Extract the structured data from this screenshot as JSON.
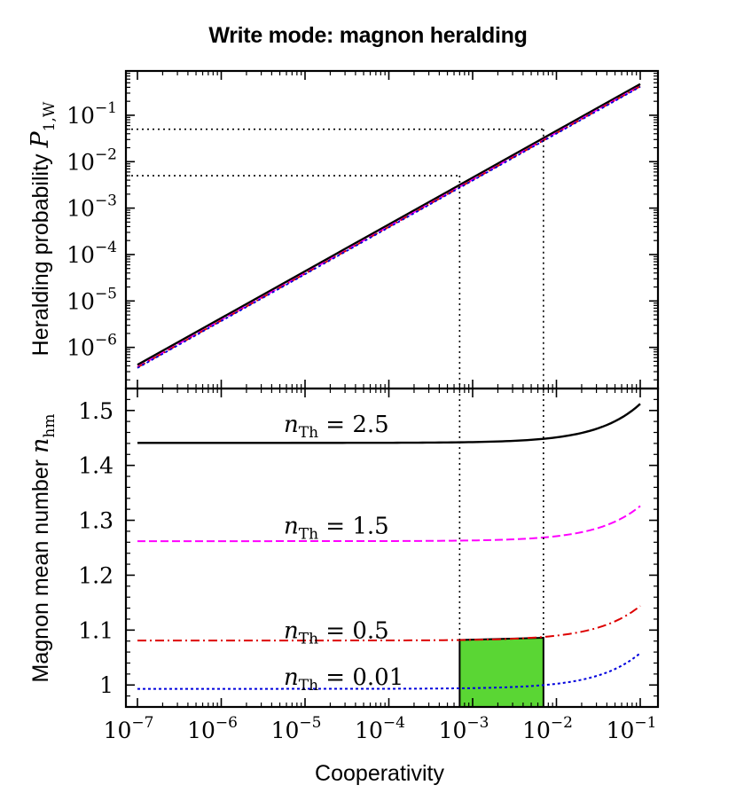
{
  "title": "Write mode: magnon heralding",
  "chart_data": [
    {
      "type": "line",
      "panel": "top",
      "ylabel_text": "Heralding probability",
      "ylabel_symbol": "P",
      "ylabel_sub": "1,W",
      "xscale": "log",
      "yscale": "log",
      "xlim": [
        1e-07,
        0.1
      ],
      "ylim": [
        1.3e-07,
        0.9
      ],
      "y_ticks": [
        {
          "value": 1e-06,
          "base": "10",
          "exp": "−6"
        },
        {
          "value": 1e-05,
          "base": "10",
          "exp": "−5"
        },
        {
          "value": 0.0001,
          "base": "10",
          "exp": "−4"
        },
        {
          "value": 0.001,
          "base": "10",
          "exp": "−3"
        },
        {
          "value": 0.01,
          "base": "10",
          "exp": "−2"
        },
        {
          "value": 0.1,
          "base": "10",
          "exp": "−1"
        }
      ],
      "series": [
        {
          "name": "n_Th = 2.5",
          "color": "#000000",
          "style": "solid",
          "x": [
            1e-07,
            0.1
          ],
          "y": [
            4.2e-07,
            0.47
          ]
        },
        {
          "name": "n_Th = 1.5",
          "color": "#ff00ff",
          "style": "dashed",
          "x": [
            1e-07,
            0.1
          ],
          "y": [
            3.8e-07,
            0.43
          ]
        },
        {
          "name": "n_Th = 0.5",
          "color": "#dd0000",
          "style": "dashdot",
          "x": [
            1e-07,
            0.1
          ],
          "y": [
            3.7e-07,
            0.42
          ]
        },
        {
          "name": "n_Th = 0.01",
          "color": "#0000dd",
          "style": "dotted",
          "x": [
            1e-07,
            0.1
          ],
          "y": [
            3.6e-07,
            0.41
          ]
        }
      ],
      "reference_lines": [
        {
          "x": 0.0007,
          "y": 0.005
        },
        {
          "x": 0.007,
          "y": 0.05
        }
      ]
    },
    {
      "type": "line",
      "panel": "bottom",
      "ylabel_text": "Magnon mean number",
      "ylabel_symbol": "n",
      "ylabel_sub": "hm",
      "xlabel": "Cooperativity",
      "xscale": "log",
      "xlim": [
        1e-07,
        0.1
      ],
      "ylim": [
        0.96,
        1.54
      ],
      "y_ticks": [
        {
          "value": 1.0,
          "label": "1"
        },
        {
          "value": 1.1,
          "label": "1.1"
        },
        {
          "value": 1.2,
          "label": "1.2"
        },
        {
          "value": 1.3,
          "label": "1.3"
        },
        {
          "value": 1.4,
          "label": "1.4"
        },
        {
          "value": 1.5,
          "label": "1.5"
        }
      ],
      "x_ticks": [
        {
          "value": 1e-07,
          "base": "10",
          "exp": "−7"
        },
        {
          "value": 1e-06,
          "base": "10",
          "exp": "−6"
        },
        {
          "value": 1e-05,
          "base": "10",
          "exp": "−5"
        },
        {
          "value": 0.0001,
          "base": "10",
          "exp": "−4"
        },
        {
          "value": 0.001,
          "base": "10",
          "exp": "−3"
        },
        {
          "value": 0.01,
          "base": "10",
          "exp": "−2"
        },
        {
          "value": 0.1,
          "base": "10",
          "exp": "−1"
        }
      ],
      "series": [
        {
          "name": "n_Th = 2.5",
          "color": "#000000",
          "style": "solid",
          "base": 1.441,
          "growth": 0.071,
          "exponent": 0.85
        },
        {
          "name": "n_Th = 1.5",
          "color": "#ff00ff",
          "style": "dashed",
          "base": 1.262,
          "growth": 0.064,
          "exponent": 0.85
        },
        {
          "name": "n_Th = 0.5",
          "color": "#dd0000",
          "style": "dashdot",
          "base": 1.081,
          "growth": 0.063,
          "exponent": 0.85
        },
        {
          "name": "n_Th = 0.01",
          "color": "#0000dd",
          "style": "dotted",
          "base": 0.993,
          "growth": 0.065,
          "exponent": 0.85
        }
      ],
      "curve_labels": [
        {
          "symbol": "n",
          "sub": "Th",
          "value": "= 2.5",
          "x": 1e-05,
          "y": 1.475
        },
        {
          "symbol": "n",
          "sub": "Th",
          "value": "= 1.5",
          "x": 1e-05,
          "y": 1.29
        },
        {
          "symbol": "n",
          "sub": "Th",
          "value": "= 0.5",
          "x": 1e-05,
          "y": 1.1
        },
        {
          "symbol": "n",
          "sub": "Th",
          "value": "= 0.01",
          "x": 1e-05,
          "y": 1.015
        }
      ],
      "highlight_region": {
        "x": [
          0.0007,
          0.007
        ],
        "y_top": [
          1.082,
          1.086
        ],
        "y_bottom": 0.96,
        "color": "#5ad634"
      },
      "reference_lines": [
        {
          "x": 0.0007
        },
        {
          "x": 0.007
        }
      ]
    }
  ]
}
